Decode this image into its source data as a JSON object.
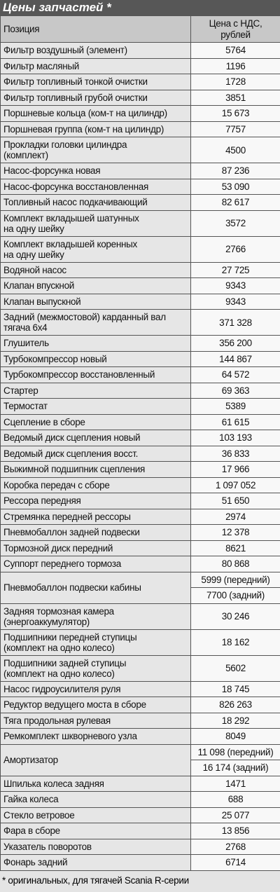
{
  "title": "Цены запчастей *",
  "table": {
    "header": [
      "Позиция",
      "Цена с НДС,\nрублей"
    ],
    "rows": [
      {
        "position": "Фильтр воздушный (элемент)",
        "price": "5764"
      },
      {
        "position": "Фильтр масляный",
        "price": "1196"
      },
      {
        "position": "Фильтр топливный тонкой очистки",
        "price": "1728"
      },
      {
        "position": "Фильтр топливный грубой очистки",
        "price": "3851"
      },
      {
        "position": "Поршневые кольца (ком-т на цилиндр)",
        "price": "15 673"
      },
      {
        "position": "Поршневая группа (ком-т на цилиндр)",
        "price": "7757"
      },
      {
        "position": "Прокладки головки цилиндра\n(комплект)",
        "price": "4500"
      },
      {
        "position": "Насос-форсунка новая",
        "price": "87 236"
      },
      {
        "position": "Насос-форсунка восстановленная",
        "price": "53 090"
      },
      {
        "position": "Топливный насос подкачивающий",
        "price": "82 617"
      },
      {
        "position": "Комплект вкладышей шатунных\nна одну шейку",
        "price": "3572"
      },
      {
        "position": "Комплект вкладышей коренных\nна одну шейку",
        "price": "2766"
      },
      {
        "position": "Водяной насос",
        "price": "27 725"
      },
      {
        "position": "Клапан впускной",
        "price": "9343"
      },
      {
        "position": "Клапан выпускной",
        "price": "9343"
      },
      {
        "position": "Задний (межмостовой) карданный вал\nтягача 6x4",
        "price": "371 328"
      },
      {
        "position": "Глушитель",
        "price": "356 200"
      },
      {
        "position": "Турбокомпрессор новый",
        "price": "144 867"
      },
      {
        "position": "Турбокомпрессор восстановленный",
        "price": "64 572"
      },
      {
        "position": "Стартер",
        "price": "69 363"
      },
      {
        "position": "Термостат",
        "price": "5389"
      },
      {
        "position": "Сцепление в сборе",
        "price": "61 615"
      },
      {
        "position": "Ведомый диск сцепления новый",
        "price": "103 193"
      },
      {
        "position": "Ведомый диск сцепления восст.",
        "price": "36 833"
      },
      {
        "position": "Выжимной подшипник сцепления",
        "price": "17 966"
      },
      {
        "position": "Коробка передач с сборе",
        "price": "1 097 052"
      },
      {
        "position": "Рессора передняя",
        "price": "51 650"
      },
      {
        "position": "Стремянка передней рессоры",
        "price": "2974"
      },
      {
        "position": "Пневмобаллон задней подвески",
        "price": "12 378"
      },
      {
        "position": "Тормозной диск передний",
        "price": "8621"
      },
      {
        "position": "Суппорт переднего тормоза",
        "price": "80 868"
      },
      {
        "position": "Пневмобаллон подвески кабины",
        "prices": [
          "5999 (передний)",
          "7700 (задний)"
        ]
      },
      {
        "position": "Задняя тормозная камера\n(энергоаккумулятор)",
        "price": "30 246"
      },
      {
        "position": "Подшипники передней ступицы\n(комплект на одно колесо)",
        "price": "18 162"
      },
      {
        "position": "Подшипники задней ступицы\n(комплект на одно колесо)",
        "price": "5602"
      },
      {
        "position": "Насос гидроусилителя руля",
        "price": "18 745"
      },
      {
        "position": "Редуктор ведущего моста в сборе",
        "price": "826 263"
      },
      {
        "position": "Тяга продольная рулевая",
        "price": "18 292"
      },
      {
        "position": "Ремкомплект шкворневого узла",
        "price": "8049"
      },
      {
        "position": "Амортизатор",
        "prices": [
          "11 098 (передний)",
          "16 174 (задний)"
        ]
      },
      {
        "position": "Шпилька колеса задняя",
        "price": "1471"
      },
      {
        "position": "Гайка колеса",
        "price": "688"
      },
      {
        "position": "Стекло ветровое",
        "price": "25 077"
      },
      {
        "position": "Фара в сборе",
        "price": "13 856"
      },
      {
        "position": "Указатель поворотов",
        "price": "2768"
      },
      {
        "position": "Фонарь задний",
        "price": "6714"
      }
    ]
  },
  "footnote": "* оригинальных, для тягачей Scania R-серии"
}
